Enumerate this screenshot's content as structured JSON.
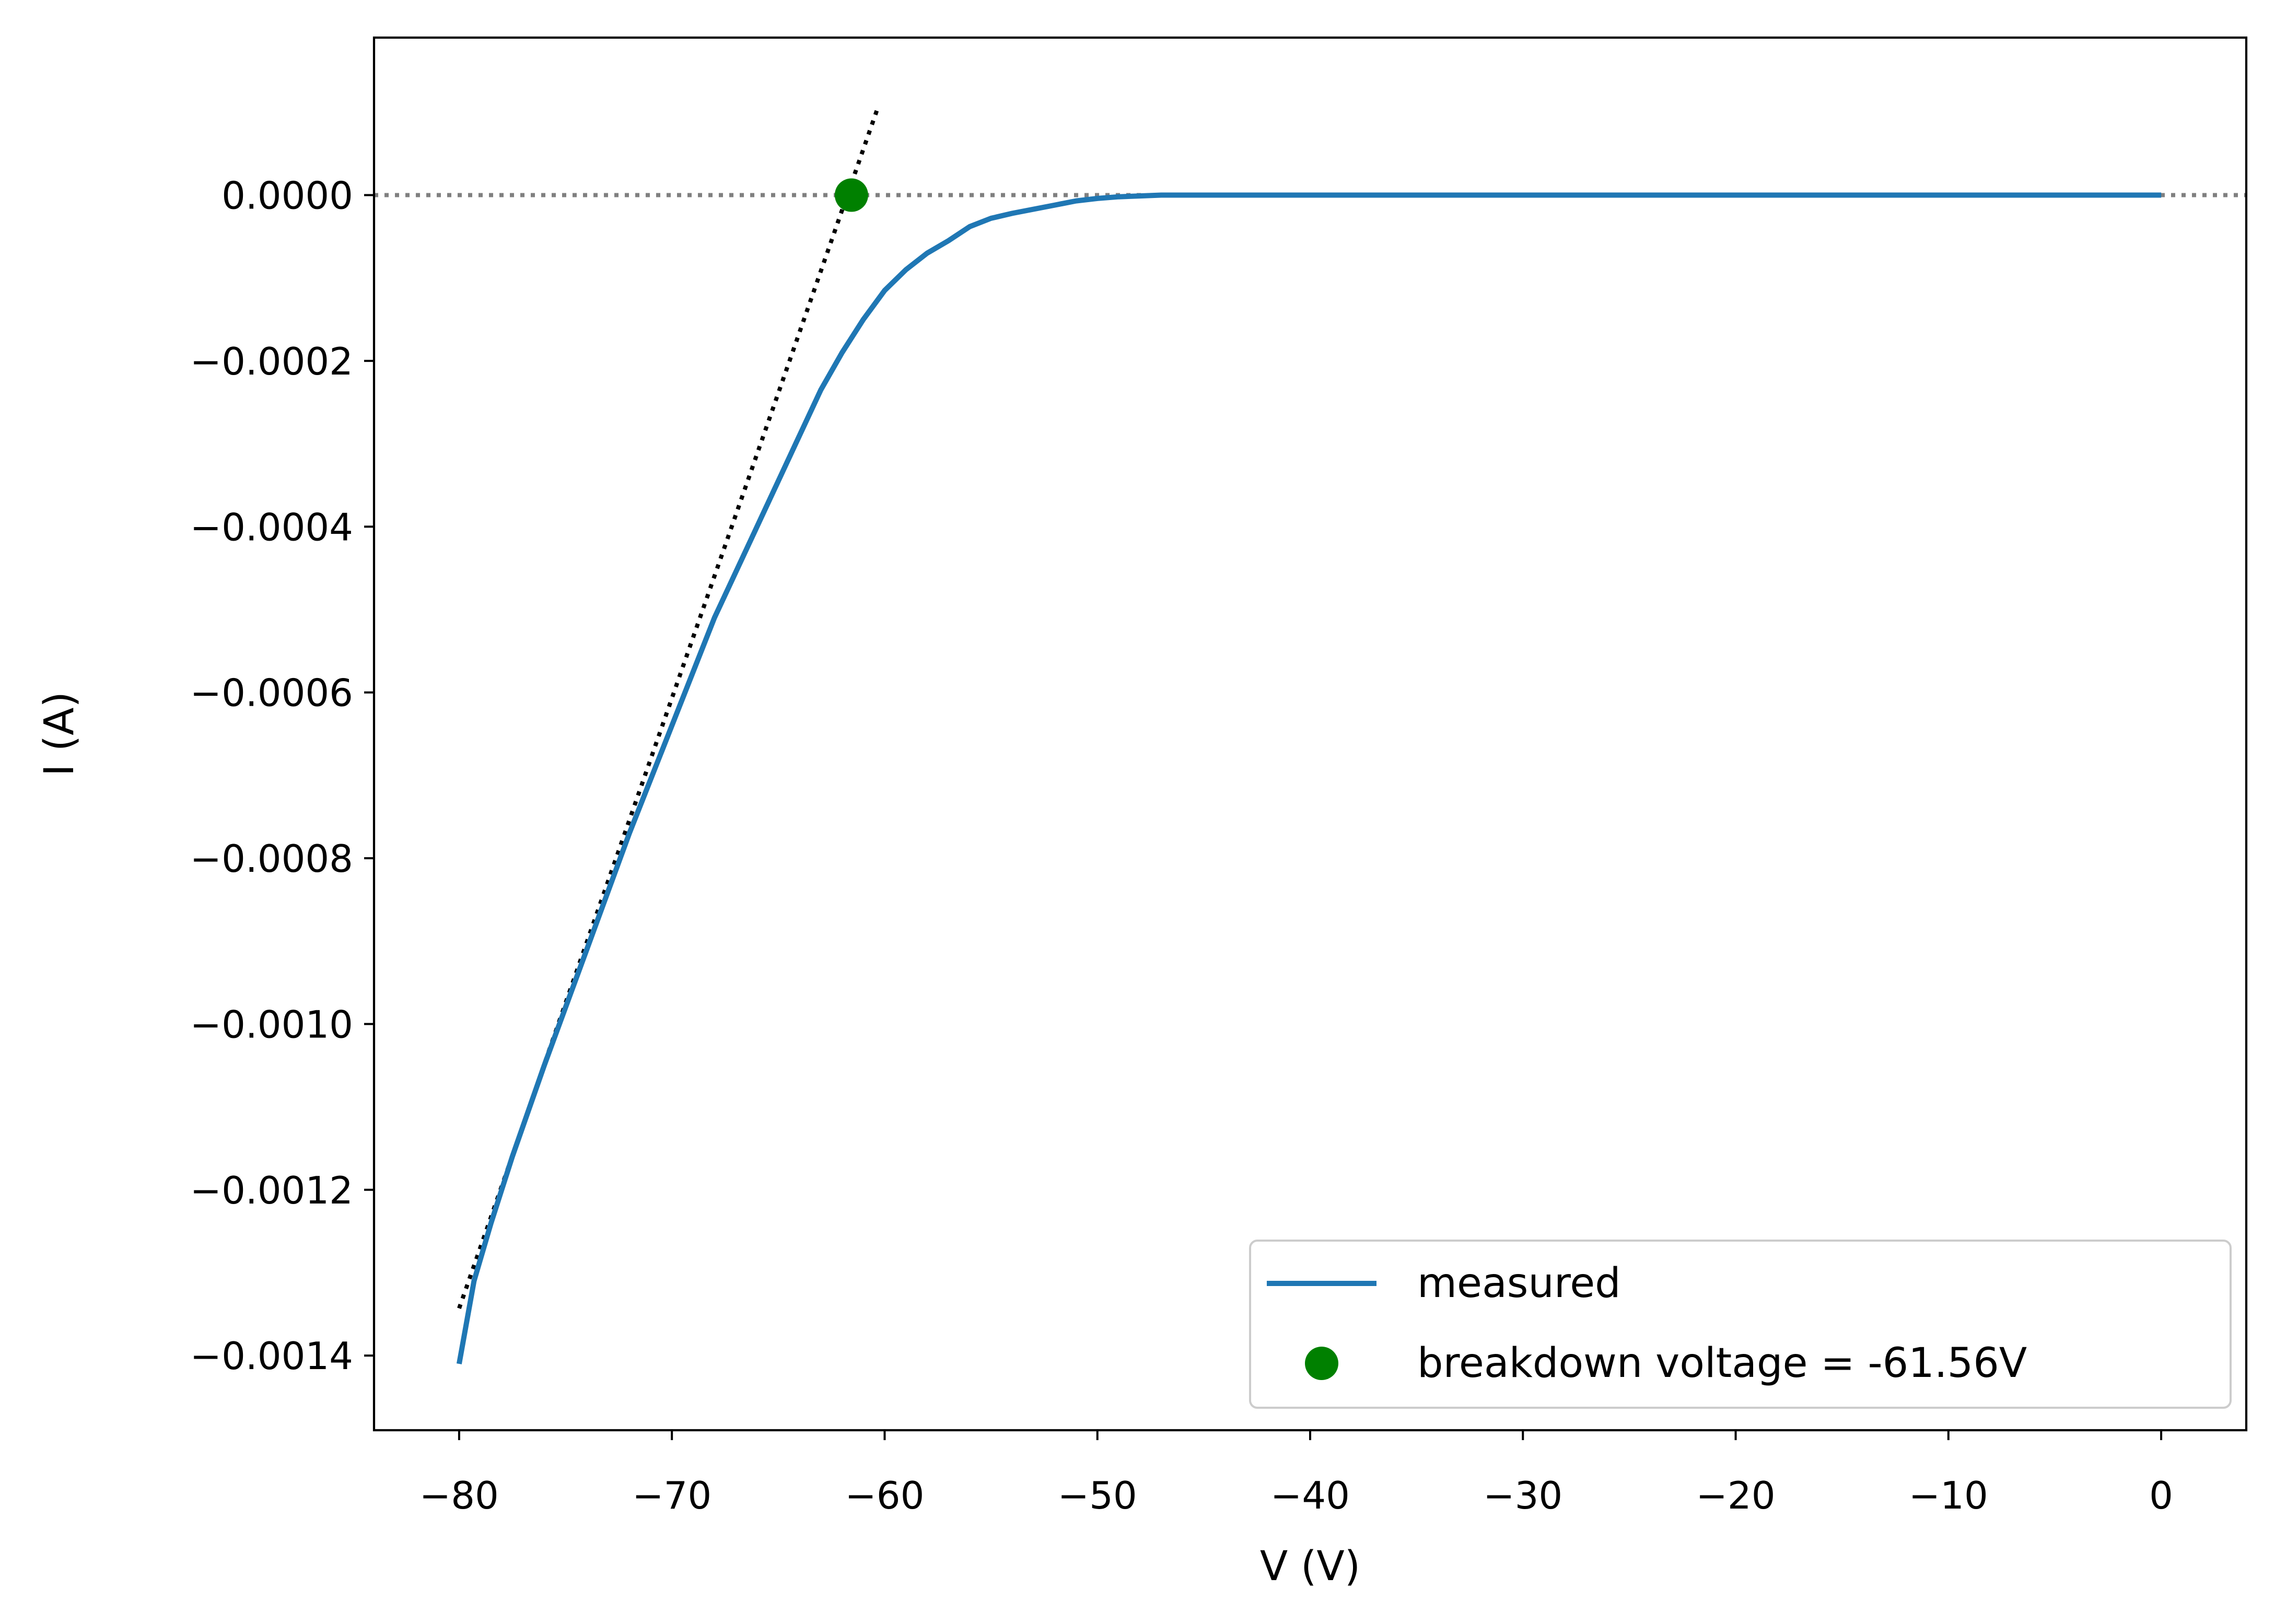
{
  "chart_data": {
    "type": "line",
    "xlabel": "V (V)",
    "ylabel": "I (A)",
    "xlim": [
      -84,
      4
    ],
    "ylim": [
      -0.00149,
      0.00019
    ],
    "grid": false,
    "legend_position": "lower-right",
    "x_ticks": [
      {
        "value": -80,
        "label": "−80"
      },
      {
        "value": -70,
        "label": "−70"
      },
      {
        "value": -60,
        "label": "−60"
      },
      {
        "value": -50,
        "label": "−50"
      },
      {
        "value": -40,
        "label": "−40"
      },
      {
        "value": -30,
        "label": "−30"
      },
      {
        "value": -20,
        "label": "−20"
      },
      {
        "value": -10,
        "label": "−10"
      },
      {
        "value": 0,
        "label": "0"
      }
    ],
    "y_ticks": [
      {
        "value": 0,
        "label": "0.0000"
      },
      {
        "value": -0.0002,
        "label": "−0.0002"
      },
      {
        "value": -0.0004,
        "label": "−0.0004"
      },
      {
        "value": -0.0006,
        "label": "−0.0006"
      },
      {
        "value": -0.0008,
        "label": "−0.0008"
      },
      {
        "value": -0.001,
        "label": "−0.0010"
      },
      {
        "value": -0.0012,
        "label": "−0.0012"
      },
      {
        "value": -0.0014,
        "label": "−0.0014"
      }
    ],
    "series": [
      {
        "name": "measured",
        "color": "#1f77b4",
        "x": [
          -80,
          -79.3,
          -78.5,
          -77.5,
          -76,
          -74,
          -72,
          -70,
          -68,
          -66,
          -65,
          -64,
          -63,
          -62,
          -61,
          -60,
          -59,
          -58,
          -57,
          -56,
          -55,
          -54,
          -53,
          -52,
          -51,
          -50,
          -49,
          -48,
          -47,
          -46,
          -40,
          -30,
          -20,
          -10,
          0
        ],
        "y": [
          -0.00141,
          -0.00131,
          -0.00124,
          -0.00116,
          -0.00105,
          -0.00091,
          -0.00077,
          -0.00064,
          -0.00051,
          -0.0004,
          -0.000345,
          -0.00029,
          -0.000235,
          -0.00019,
          -0.00015,
          -0.000115,
          -9e-05,
          -7e-05,
          -5.5e-05,
          -3.8e-05,
          -2.8e-05,
          -2.2e-05,
          -1.7e-05,
          -1.2e-05,
          -7e-06,
          -4e-06,
          -2e-06,
          -1e-06,
          0,
          0,
          0,
          0,
          0,
          0,
          0
        ]
      }
    ],
    "fit_line": {
      "color": "#000000",
      "style": "dotted",
      "x": [
        -80,
        -60.3
      ],
      "y": [
        -0.001343,
        0.000107
      ]
    },
    "reference_line": {
      "color": "#808080",
      "style": "dotted",
      "y": 0
    },
    "breakdown_point": {
      "name": "breakdown voltage = -61.56V",
      "color": "#008000",
      "x": -61.56,
      "y": 0
    }
  }
}
